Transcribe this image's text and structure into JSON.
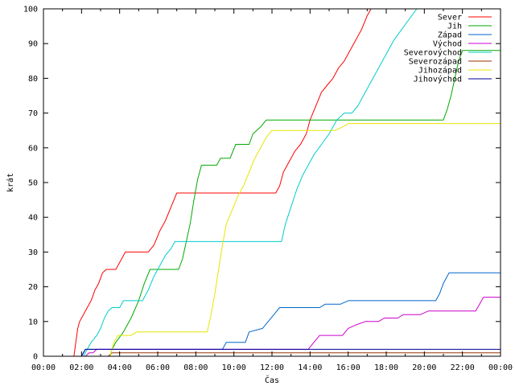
{
  "chart_data": {
    "type": "line",
    "title": "",
    "xlabel": "Čas",
    "ylabel": "krát",
    "xlim": [
      0,
      24
    ],
    "ylim": [
      0,
      100
    ],
    "x_tick_labels": [
      "00:00",
      "02:00",
      "04:00",
      "06:00",
      "08:00",
      "10:00",
      "12:00",
      "14:00",
      "16:00",
      "18:00",
      "20:00",
      "22:00",
      "00:00"
    ],
    "y_tick_labels": [
      "0",
      "10",
      "20",
      "30",
      "40",
      "50",
      "60",
      "70",
      "80",
      "90",
      "100"
    ],
    "legend_position": "top-right",
    "grid": false,
    "series": [
      {
        "name": "Sever",
        "color": "#ff0000",
        "points": [
          [
            1.6,
            0
          ],
          [
            1.7,
            4
          ],
          [
            1.8,
            8
          ],
          [
            1.9,
            10
          ],
          [
            2.0,
            11
          ],
          [
            2.1,
            12
          ],
          [
            2.3,
            14
          ],
          [
            2.5,
            16
          ],
          [
            2.7,
            19
          ],
          [
            2.9,
            21
          ],
          [
            3.1,
            24
          ],
          [
            3.3,
            25
          ],
          [
            3.8,
            25
          ],
          [
            4.0,
            27
          ],
          [
            4.3,
            30
          ],
          [
            5.5,
            30
          ],
          [
            5.8,
            32
          ],
          [
            6.1,
            36
          ],
          [
            6.4,
            39
          ],
          [
            6.7,
            43
          ],
          [
            7.0,
            47
          ],
          [
            12.2,
            47
          ],
          [
            12.4,
            49
          ],
          [
            12.6,
            53
          ],
          [
            12.9,
            56
          ],
          [
            13.2,
            59
          ],
          [
            13.5,
            61
          ],
          [
            13.8,
            64
          ],
          [
            14.0,
            68
          ],
          [
            14.3,
            72
          ],
          [
            14.6,
            76
          ],
          [
            14.9,
            78
          ],
          [
            15.2,
            80
          ],
          [
            15.5,
            83
          ],
          [
            15.8,
            85
          ],
          [
            16.1,
            88
          ],
          [
            16.4,
            91
          ],
          [
            16.7,
            94
          ],
          [
            17.0,
            98
          ],
          [
            17.2,
            100
          ]
        ]
      },
      {
        "name": "Jih",
        "color": "#00aa00",
        "points": [
          [
            3.5,
            0
          ],
          [
            3.6,
            2
          ],
          [
            3.8,
            4
          ],
          [
            4.2,
            7
          ],
          [
            4.6,
            11
          ],
          [
            5.0,
            16
          ],
          [
            5.3,
            21
          ],
          [
            5.6,
            25
          ],
          [
            7.1,
            25
          ],
          [
            7.3,
            28
          ],
          [
            7.5,
            33
          ],
          [
            7.7,
            38
          ],
          [
            7.9,
            45
          ],
          [
            8.1,
            51
          ],
          [
            8.3,
            55
          ],
          [
            9.1,
            55
          ],
          [
            9.3,
            57
          ],
          [
            9.8,
            57
          ],
          [
            10.1,
            61
          ],
          [
            10.8,
            61
          ],
          [
            11.0,
            64
          ],
          [
            11.4,
            66
          ],
          [
            11.7,
            68
          ],
          [
            21.0,
            68
          ],
          [
            21.2,
            71
          ],
          [
            21.4,
            75
          ],
          [
            21.6,
            80
          ],
          [
            21.8,
            85
          ],
          [
            22.0,
            88
          ],
          [
            24.0,
            88
          ]
        ]
      },
      {
        "name": "Západ",
        "color": "#0066cc",
        "points": [
          [
            2.0,
            0
          ],
          [
            2.2,
            2
          ],
          [
            9.4,
            2
          ],
          [
            9.6,
            4
          ],
          [
            10.6,
            4
          ],
          [
            10.8,
            7
          ],
          [
            11.5,
            8
          ],
          [
            11.8,
            10
          ],
          [
            12.1,
            12
          ],
          [
            12.4,
            14
          ],
          [
            14.5,
            14
          ],
          [
            14.8,
            15
          ],
          [
            15.6,
            15
          ],
          [
            16.0,
            16
          ],
          [
            20.6,
            16
          ],
          [
            20.8,
            18
          ],
          [
            21.0,
            21
          ],
          [
            21.3,
            24
          ],
          [
            24.0,
            24
          ]
        ]
      },
      {
        "name": "Východ",
        "color": "#cc00cc",
        "points": [
          [
            2.2,
            0
          ],
          [
            2.4,
            1
          ],
          [
            2.6,
            1
          ],
          [
            2.8,
            2
          ],
          [
            13.9,
            2
          ],
          [
            14.2,
            4
          ],
          [
            14.5,
            6
          ],
          [
            15.7,
            6
          ],
          [
            16.0,
            8
          ],
          [
            16.4,
            9
          ],
          [
            16.9,
            10
          ],
          [
            17.6,
            10
          ],
          [
            17.9,
            11
          ],
          [
            18.6,
            11
          ],
          [
            18.9,
            12
          ],
          [
            19.8,
            12
          ],
          [
            20.2,
            13
          ],
          [
            22.7,
            13
          ],
          [
            22.9,
            15
          ],
          [
            23.1,
            17
          ],
          [
            24.0,
            17
          ]
        ]
      },
      {
        "name": "Severovýchod",
        "color": "#00cccc",
        "points": [
          [
            2.1,
            0
          ],
          [
            2.3,
            2
          ],
          [
            2.5,
            4
          ],
          [
            2.8,
            6
          ],
          [
            3.0,
            8
          ],
          [
            3.2,
            11
          ],
          [
            3.4,
            13
          ],
          [
            3.6,
            14
          ],
          [
            4.0,
            14
          ],
          [
            4.2,
            16
          ],
          [
            5.2,
            16
          ],
          [
            5.5,
            19
          ],
          [
            5.8,
            23
          ],
          [
            6.1,
            26
          ],
          [
            6.4,
            29
          ],
          [
            6.7,
            31
          ],
          [
            6.9,
            33
          ],
          [
            12.5,
            33
          ],
          [
            12.7,
            38
          ],
          [
            13.0,
            43
          ],
          [
            13.3,
            48
          ],
          [
            13.6,
            52
          ],
          [
            13.9,
            55
          ],
          [
            14.2,
            58
          ],
          [
            14.6,
            61
          ],
          [
            15.0,
            64
          ],
          [
            15.4,
            68
          ],
          [
            15.8,
            70
          ],
          [
            16.2,
            70
          ],
          [
            16.5,
            72
          ],
          [
            16.8,
            75
          ],
          [
            17.1,
            78
          ],
          [
            17.4,
            81
          ],
          [
            17.7,
            84
          ],
          [
            18.0,
            87
          ],
          [
            18.4,
            91
          ],
          [
            18.8,
            94
          ],
          [
            19.2,
            97
          ],
          [
            19.6,
            100
          ]
        ]
      },
      {
        "name": "Severozápad",
        "color": "#993300",
        "points": [
          [
            3.4,
            0
          ],
          [
            3.6,
            1
          ],
          [
            8.6,
            1
          ],
          [
            8.8,
            1
          ],
          [
            23.2,
            1
          ],
          [
            23.4,
            1
          ],
          [
            24.0,
            1
          ]
        ]
      },
      {
        "name": "Jihozápad",
        "color": "#e6e600",
        "points": [
          [
            3.5,
            0
          ],
          [
            3.7,
            4
          ],
          [
            3.9,
            6
          ],
          [
            4.6,
            6
          ],
          [
            4.9,
            7
          ],
          [
            8.6,
            7
          ],
          [
            8.8,
            12
          ],
          [
            9.0,
            18
          ],
          [
            9.2,
            25
          ],
          [
            9.4,
            32
          ],
          [
            9.6,
            38
          ],
          [
            9.9,
            42
          ],
          [
            10.2,
            46
          ],
          [
            10.5,
            49
          ],
          [
            10.8,
            53
          ],
          [
            11.1,
            57
          ],
          [
            11.4,
            60
          ],
          [
            11.7,
            63
          ],
          [
            12.0,
            65
          ],
          [
            15.3,
            65
          ],
          [
            15.7,
            66
          ],
          [
            16.0,
            67
          ],
          [
            24.0,
            67
          ]
        ]
      },
      {
        "name": "Jihovýchod",
        "color": "#000099",
        "points": [
          [
            2.0,
            0
          ],
          [
            2.2,
            2
          ],
          [
            9.5,
            2
          ],
          [
            9.7,
            2
          ],
          [
            24.0,
            2
          ]
        ]
      }
    ]
  }
}
